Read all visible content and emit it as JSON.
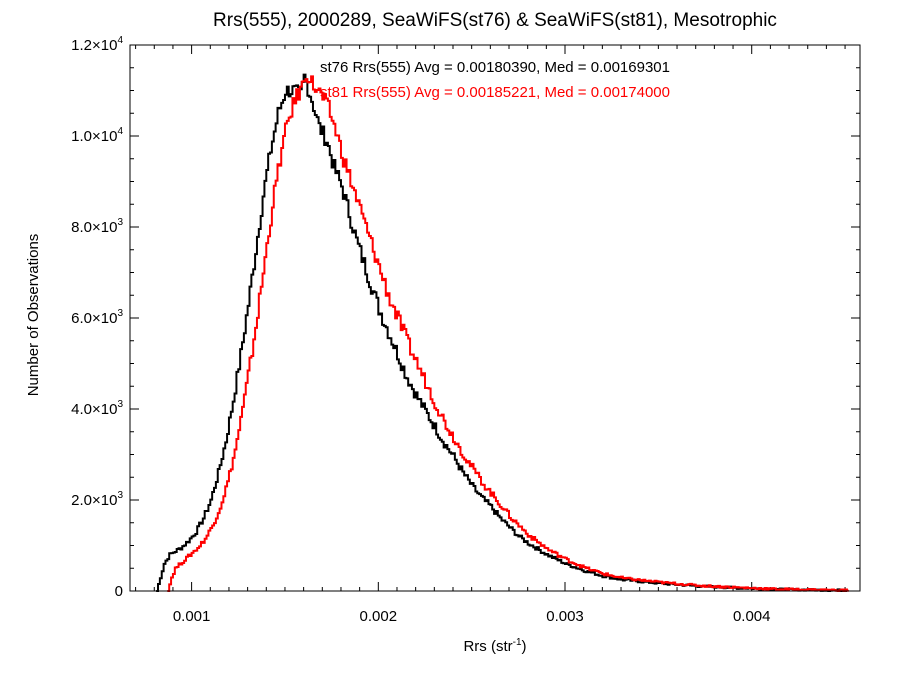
{
  "chart_data": {
    "type": "line",
    "step": true,
    "title": "Rrs(555), 2000289, SeaWiFS(st76) & SeaWiFS(st81), Mesotrophic",
    "xlabel": "Rrs (str",
    "xlabel_sup": "-1",
    "xlabel_close": ")",
    "ylabel": "Number of Observations",
    "xlim": [
      0.00067,
      0.00458
    ],
    "ylim": [
      0,
      12000
    ],
    "xticks": [
      {
        "value": 0.001,
        "label": "0.001"
      },
      {
        "value": 0.002,
        "label": "0.002"
      },
      {
        "value": 0.003,
        "label": "0.003"
      },
      {
        "value": 0.004,
        "label": "0.004"
      }
    ],
    "yticks": [
      {
        "value": 0,
        "mant": "0",
        "exp": ""
      },
      {
        "value": 2000,
        "mant": "2.0×10",
        "exp": "3"
      },
      {
        "value": 4000,
        "mant": "4.0×10",
        "exp": "3"
      },
      {
        "value": 6000,
        "mant": "6.0×10",
        "exp": "3"
      },
      {
        "value": 8000,
        "mant": "8.0×10",
        "exp": "3"
      },
      {
        "value": 10000,
        "mant": "1.0×10",
        "exp": "4"
      },
      {
        "value": 12000,
        "mant": "1.2×10",
        "exp": "4"
      }
    ],
    "grid": false,
    "series": [
      {
        "name": "st76",
        "color": "#000000",
        "annotation": "st76 Rrs(555) Avg = 0.00180390, Med = 0.00169301",
        "points": [
          [
            0.00081,
            0
          ],
          [
            0.00083,
            300
          ],
          [
            0.00085,
            600
          ],
          [
            0.00088,
            800
          ],
          [
            0.0009,
            850
          ],
          [
            0.00094,
            950
          ],
          [
            0.00098,
            1100
          ],
          [
            0.00102,
            1300
          ],
          [
            0.00106,
            1600
          ],
          [
            0.0011,
            2000
          ],
          [
            0.00114,
            2600
          ],
          [
            0.00118,
            3300
          ],
          [
            0.00122,
            4200
          ],
          [
            0.00126,
            5200
          ],
          [
            0.0013,
            6300
          ],
          [
            0.00134,
            7500
          ],
          [
            0.00138,
            8700
          ],
          [
            0.00142,
            9700
          ],
          [
            0.00146,
            10500
          ],
          [
            0.0015,
            11000
          ],
          [
            0.00154,
            11000
          ],
          [
            0.00158,
            10900
          ],
          [
            0.0016,
            11300
          ],
          [
            0.00164,
            10800
          ],
          [
            0.00168,
            10200
          ],
          [
            0.00172,
            9900
          ],
          [
            0.00176,
            9300
          ],
          [
            0.0018,
            8900
          ],
          [
            0.00184,
            8300
          ],
          [
            0.00188,
            7700
          ],
          [
            0.00192,
            7200
          ],
          [
            0.00196,
            6700
          ],
          [
            0.002,
            6200
          ],
          [
            0.00205,
            5700
          ],
          [
            0.0021,
            5200
          ],
          [
            0.00215,
            4700
          ],
          [
            0.0022,
            4300
          ],
          [
            0.00225,
            3950
          ],
          [
            0.0023,
            3600
          ],
          [
            0.00235,
            3250
          ],
          [
            0.0024,
            2950
          ],
          [
            0.00245,
            2600
          ],
          [
            0.0025,
            2300
          ],
          [
            0.00255,
            2050
          ],
          [
            0.0026,
            1850
          ],
          [
            0.00265,
            1600
          ],
          [
            0.0027,
            1400
          ],
          [
            0.00275,
            1200
          ],
          [
            0.0028,
            1050
          ],
          [
            0.0029,
            800
          ],
          [
            0.003,
            600
          ],
          [
            0.0031,
            450
          ],
          [
            0.0032,
            330
          ],
          [
            0.0033,
            250
          ],
          [
            0.0035,
            170
          ],
          [
            0.0037,
            110
          ],
          [
            0.0039,
            70
          ],
          [
            0.0041,
            40
          ],
          [
            0.0043,
            25
          ],
          [
            0.0045,
            15
          ]
        ]
      },
      {
        "name": "st81",
        "color": "#ff0000",
        "annotation": "st81 Rrs(555) Avg = 0.00185221, Med = 0.00174000",
        "points": [
          [
            0.00087,
            0
          ],
          [
            0.00089,
            300
          ],
          [
            0.00091,
            500
          ],
          [
            0.00095,
            650
          ],
          [
            0.00099,
            800
          ],
          [
            0.00103,
            950
          ],
          [
            0.00107,
            1150
          ],
          [
            0.00111,
            1450
          ],
          [
            0.00115,
            1850
          ],
          [
            0.00119,
            2400
          ],
          [
            0.00123,
            3100
          ],
          [
            0.00127,
            4000
          ],
          [
            0.00131,
            5000
          ],
          [
            0.00135,
            6100
          ],
          [
            0.00139,
            7300
          ],
          [
            0.00143,
            8500
          ],
          [
            0.00147,
            9500
          ],
          [
            0.00151,
            10300
          ],
          [
            0.00155,
            10800
          ],
          [
            0.00159,
            11100
          ],
          [
            0.00161,
            11400
          ],
          [
            0.00165,
            11100
          ],
          [
            0.00169,
            10900
          ],
          [
            0.00173,
            10600
          ],
          [
            0.00177,
            10100
          ],
          [
            0.00181,
            9500
          ],
          [
            0.00185,
            9000
          ],
          [
            0.00189,
            8500
          ],
          [
            0.00193,
            8000
          ],
          [
            0.00197,
            7500
          ],
          [
            0.00201,
            7000
          ],
          [
            0.00206,
            6400
          ],
          [
            0.00211,
            5900
          ],
          [
            0.00216,
            5400
          ],
          [
            0.00221,
            4950
          ],
          [
            0.00226,
            4500
          ],
          [
            0.00231,
            4050
          ],
          [
            0.00236,
            3650
          ],
          [
            0.00241,
            3300
          ],
          [
            0.00246,
            2950
          ],
          [
            0.00251,
            2650
          ],
          [
            0.00256,
            2350
          ],
          [
            0.00261,
            2100
          ],
          [
            0.00266,
            1850
          ],
          [
            0.00271,
            1600
          ],
          [
            0.00276,
            1400
          ],
          [
            0.00281,
            1200
          ],
          [
            0.00291,
            900
          ],
          [
            0.00301,
            680
          ],
          [
            0.00311,
            500
          ],
          [
            0.00321,
            370
          ],
          [
            0.00331,
            280
          ],
          [
            0.00351,
            190
          ],
          [
            0.00371,
            120
          ],
          [
            0.00391,
            80
          ],
          [
            0.00411,
            45
          ],
          [
            0.00431,
            28
          ],
          [
            0.00451,
            15
          ]
        ]
      }
    ]
  }
}
